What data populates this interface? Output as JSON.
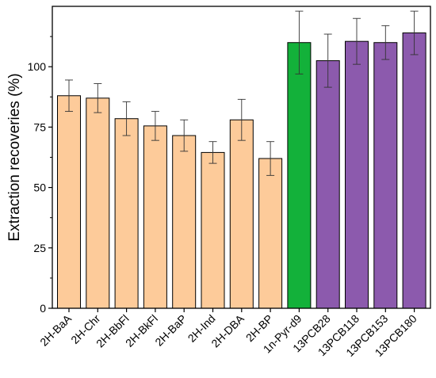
{
  "chart_data": {
    "type": "bar",
    "title": "",
    "xlabel": "",
    "ylabel": "Extraction recoveries (%)",
    "ylim": [
      0,
      125
    ],
    "yticks": [
      0,
      25,
      50,
      75,
      100
    ],
    "grid": false,
    "categories": [
      "2H-BaA",
      "2H-Chr",
      "2H-BbFl",
      "2H-BkFl",
      "2H-BaP",
      "2H-Ind",
      "2H-DBA",
      "2H-BP",
      "1n-Pyr-d9",
      "13PCB28",
      "13PCB118",
      "13PCB153",
      "13PCB180"
    ],
    "values": [
      88,
      87,
      78.5,
      75.5,
      71.5,
      64.5,
      78,
      62,
      110,
      102.5,
      110.5,
      110,
      114
    ],
    "errors": [
      6.5,
      6,
      7,
      6,
      6.5,
      4.5,
      8.5,
      7,
      13,
      11,
      9.5,
      7,
      9
    ],
    "bar_colors": [
      "#FDCB9A",
      "#FDCB9A",
      "#FDCB9A",
      "#FDCB9A",
      "#FDCB9A",
      "#FDCB9A",
      "#FDCB9A",
      "#FDCB9A",
      "#13B13A",
      "#8C5AAD",
      "#8C5AAD",
      "#8C5AAD",
      "#8C5AAD"
    ]
  }
}
